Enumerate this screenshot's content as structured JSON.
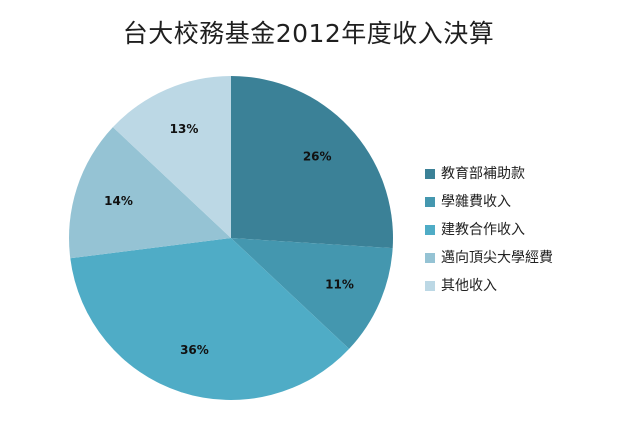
{
  "chart_data": {
    "type": "pie",
    "title": "台大校務基金2012年度收入決算",
    "unit": "%",
    "start_angle_deg": 0,
    "direction": "clockwise",
    "legend_position": "right",
    "slices": [
      {
        "label": "教育部補助款",
        "value": 26,
        "data_label": "26%",
        "color": "#3B8197"
      },
      {
        "label": "學雜費收入",
        "value": 11,
        "data_label": "11%",
        "color": "#4497AF"
      },
      {
        "label": "建教合作收入",
        "value": 36,
        "data_label": "36%",
        "color": "#4FACC6"
      },
      {
        "label": "邁向頂尖大學經費",
        "value": 14,
        "data_label": "14%",
        "color": "#95C3D4"
      },
      {
        "label": "其他收入",
        "value": 13,
        "data_label": "13%",
        "color": "#BCD8E5"
      }
    ]
  }
}
